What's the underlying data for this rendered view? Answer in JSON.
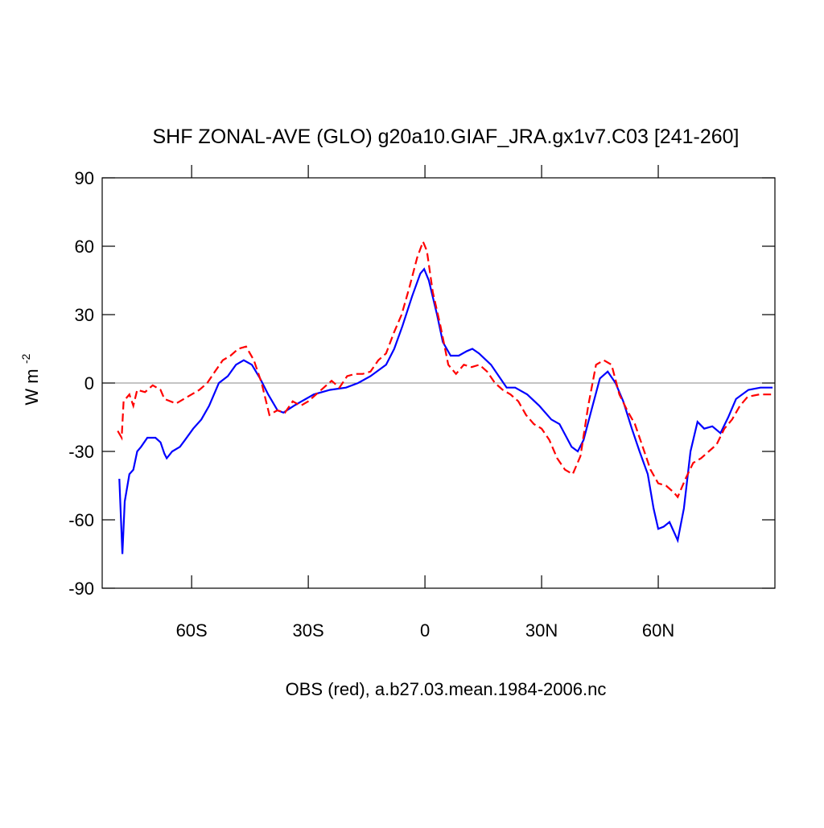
{
  "chart_data": {
    "type": "line",
    "title": "SHF ZONAL-AVE (GLO) g20a10.GIAF_JRA.gx1v7.C03 [241-260]",
    "xlabel": "OBS (red), a.b27.03.mean.1984-2006.nc",
    "ylabel": "W m",
    "ylabel_sup": "-2",
    "xlim": [
      -83,
      90
    ],
    "ylim": [
      -90,
      90
    ],
    "xticks": [
      {
        "value": -60,
        "label": "60S"
      },
      {
        "value": -30,
        "label": "30S"
      },
      0,
      {
        "value": 30,
        "label": "30N"
      },
      {
        "value": 60,
        "label": "60N"
      }
    ],
    "yticks": [
      -90,
      -60,
      -30,
      0,
      30,
      60,
      90
    ],
    "zero_line": true,
    "series": [
      {
        "color": "#0000ff",
        "dash": false,
        "x": [
          -78.6,
          -77.8,
          -77.2,
          -76,
          -75,
          -74,
          -73,
          -71.4,
          -69.3,
          -68,
          -67,
          -66.4,
          -65,
          -63,
          -61.7,
          -59.6,
          -57.5,
          -55.5,
          -53,
          -50.7,
          -48.6,
          -46.6,
          -44.5,
          -42.4,
          -40.3,
          -37.9,
          -36.4,
          -33.7,
          -31.7,
          -28.6,
          -24.4,
          -20.3,
          -17.2,
          -14,
          -10,
          -7.9,
          -5.8,
          -3.3,
          -1.2,
          -0.2,
          1,
          3.1,
          4.6,
          6.6,
          8.7,
          10.8,
          12.2,
          13.9,
          17,
          19,
          21,
          23.2,
          26.3,
          29.4,
          32.5,
          34.6,
          37.7,
          39.3,
          40.8,
          42.8,
          45,
          47,
          49,
          51,
          53.2,
          55.2,
          57.3,
          58.8,
          60,
          61.4,
          62.9,
          65,
          66.6,
          68.3,
          70.1,
          71.8,
          73.9,
          76,
          78,
          80,
          83.2,
          86.3,
          89.4
        ],
        "values": [
          -42,
          -75,
          -52,
          -40,
          -38,
          -30,
          -28,
          -24,
          -24,
          -26,
          -31,
          -33,
          -30,
          -28,
          -25,
          -20,
          -16,
          -10,
          0,
          3,
          8,
          10,
          8,
          2,
          -5,
          -12,
          -13,
          -10,
          -8,
          -5,
          -3,
          -2,
          0,
          3,
          8,
          15,
          25,
          38,
          48,
          50,
          45,
          30,
          18,
          12,
          12,
          14,
          15,
          13,
          8,
          3,
          -2,
          -2,
          -5,
          -10,
          -16,
          -18,
          -28,
          -30,
          -25,
          -12,
          2,
          5,
          0,
          -8,
          -20,
          -30,
          -40,
          -55,
          -64,
          -63,
          -61,
          -69,
          -55,
          -30,
          -17,
          -20,
          -19,
          -22,
          -15,
          -7,
          -3,
          -2,
          -2
        ]
      },
      {
        "color": "#ff0000",
        "dash": true,
        "x": [
          -79,
          -78,
          -77.5,
          -76,
          -75,
          -74,
          -72,
          -70,
          -68,
          -67,
          -64,
          -62,
          -60,
          -58,
          -56,
          -54,
          -52,
          -50,
          -48,
          -46,
          -44,
          -42,
          -40,
          -38,
          -36,
          -34,
          -32,
          -30,
          -28,
          -26,
          -24,
          -22,
          -20,
          -18,
          -16,
          -14,
          -12,
          -10,
          -8,
          -6,
          -4,
          -2,
          -0.5,
          0.5,
          2,
          4,
          6,
          8,
          10,
          12,
          14,
          16,
          18,
          20,
          22,
          24,
          26,
          28,
          30,
          32,
          34,
          36,
          38,
          40,
          42,
          44,
          46,
          48,
          50,
          52,
          54,
          56,
          58,
          60,
          62,
          64,
          65,
          67,
          69,
          71,
          73,
          75,
          77,
          79,
          81,
          83,
          86,
          89
        ],
        "values": [
          -21,
          -24,
          -8,
          -5,
          -10,
          -3,
          -4,
          -1,
          -3,
          -7,
          -9,
          -7,
          -5,
          -3,
          0,
          5,
          10,
          12,
          15,
          16,
          10,
          0,
          -14,
          -12,
          -13,
          -8,
          -10,
          -8,
          -5,
          -2,
          1,
          -2,
          3,
          4,
          4,
          5,
          10,
          13,
          22,
          30,
          42,
          55,
          62,
          58,
          40,
          25,
          8,
          4,
          8,
          7,
          8,
          5,
          0,
          -3,
          -5,
          -8,
          -14,
          -18,
          -20,
          -25,
          -33,
          -38,
          -40,
          -32,
          -10,
          8,
          10,
          8,
          -5,
          -12,
          -18,
          -28,
          -38,
          -44,
          -45,
          -48,
          -50,
          -42,
          -35,
          -33,
          -30,
          -27,
          -20,
          -16,
          -10,
          -6,
          -5,
          -5
        ]
      }
    ]
  }
}
